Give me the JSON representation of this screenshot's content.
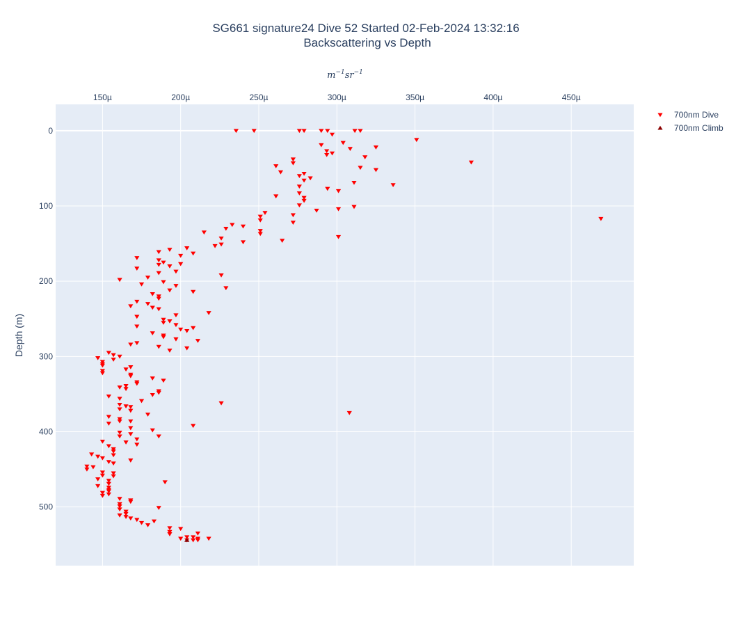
{
  "chart_data": {
    "type": "scatter",
    "title": [
      "SG661 signature24 Dive 52 Started 02-Feb-2024 13:32:16",
      "Backscattering vs Depth"
    ],
    "xlabel": {
      "base1": "m",
      "sup1": "−1",
      "base2": "sr",
      "sup2": "−1"
    },
    "ylabel": "Depth (m)",
    "xlim": [
      0.00012,
      0.00049
    ],
    "ylim": [
      578,
      -35
    ],
    "x_axis_side": "top",
    "y_reversed": true,
    "grid": true,
    "x_ticks": [
      {
        "value": 0.00015,
        "label": "150µ"
      },
      {
        "value": 0.0002,
        "label": "200µ"
      },
      {
        "value": 0.00025,
        "label": "250µ"
      },
      {
        "value": 0.0003,
        "label": "300µ"
      },
      {
        "value": 0.00035,
        "label": "350µ"
      },
      {
        "value": 0.0004,
        "label": "400µ"
      },
      {
        "value": 0.00045,
        "label": "450µ"
      }
    ],
    "y_ticks": [
      {
        "value": 0,
        "label": "0"
      },
      {
        "value": 100,
        "label": "100"
      },
      {
        "value": 200,
        "label": "200"
      },
      {
        "value": 300,
        "label": "300"
      },
      {
        "value": 400,
        "label": "400"
      },
      {
        "value": 500,
        "label": "500"
      }
    ],
    "legend_placement": "top-right",
    "series": [
      {
        "name": "700nm Dive",
        "marker": "triangle-down",
        "color": "#ff0000",
        "points": [
          [
            0.0002355,
            0
          ],
          [
            0.000247,
            0
          ],
          [
            0.000276,
            0
          ],
          [
            0.000279,
            0
          ],
          [
            0.00029,
            0
          ],
          [
            0.000294,
            0
          ],
          [
            0.0003115,
            0
          ],
          [
            0.000315,
            0
          ],
          [
            0.000297,
            5
          ],
          [
            0.000351,
            12
          ],
          [
            0.000304,
            16
          ],
          [
            0.00029,
            19
          ],
          [
            0.000325,
            22
          ],
          [
            0.0003085,
            24
          ],
          [
            0.0002935,
            27
          ],
          [
            0.000297,
            30
          ],
          [
            0.0002935,
            32
          ],
          [
            0.000318,
            35
          ],
          [
            0.000386,
            42
          ],
          [
            0.000272,
            38
          ],
          [
            0.000272,
            43
          ],
          [
            0.000261,
            47
          ],
          [
            0.000315,
            49
          ],
          [
            0.000325,
            52
          ],
          [
            0.000264,
            55
          ],
          [
            0.000279,
            57
          ],
          [
            0.000276,
            60
          ],
          [
            0.000283,
            63
          ],
          [
            0.000279,
            66
          ],
          [
            0.000311,
            69
          ],
          [
            0.000336,
            72
          ],
          [
            0.000276,
            74
          ],
          [
            0.000294,
            77
          ],
          [
            0.000301,
            80
          ],
          [
            0.000276,
            83
          ],
          [
            0.000261,
            87
          ],
          [
            0.000279,
            89
          ],
          [
            0.000279,
            93
          ],
          [
            0.000276,
            99
          ],
          [
            0.000311,
            101
          ],
          [
            0.000301,
            104
          ],
          [
            0.000287,
            106
          ],
          [
            0.000254,
            109
          ],
          [
            0.000272,
            112
          ],
          [
            0.000251,
            114
          ],
          [
            0.000469,
            117
          ],
          [
            0.000251,
            119
          ],
          [
            0.000272,
            122
          ],
          [
            0.000233,
            125
          ],
          [
            0.00024,
            127
          ],
          [
            0.000229,
            130
          ],
          [
            0.000251,
            133
          ],
          [
            0.000215,
            135
          ],
          [
            0.000251,
            137
          ],
          [
            0.000301,
            141
          ],
          [
            0.000226,
            143
          ],
          [
            0.000265,
            146
          ],
          [
            0.00024,
            148
          ],
          [
            0.000226,
            151
          ],
          [
            0.000222,
            153
          ],
          [
            0.000204,
            156
          ],
          [
            0.000193,
            158
          ],
          [
            0.000186,
            161
          ],
          [
            0.000208,
            163
          ],
          [
            0.0002,
            166
          ],
          [
            0.000172,
            169
          ],
          [
            0.000186,
            172
          ],
          [
            0.000189,
            175
          ],
          [
            0.000186,
            178
          ],
          [
            0.0002,
            177
          ],
          [
            0.000193,
            180
          ],
          [
            0.000172,
            183
          ],
          [
            0.000197,
            187
          ],
          [
            0.000186,
            189
          ],
          [
            0.000226,
            192
          ],
          [
            0.000179,
            195
          ],
          [
            0.000161,
            198
          ],
          [
            0.000189,
            201
          ],
          [
            0.000175,
            204
          ],
          [
            0.000197,
            206
          ],
          [
            0.000229,
            209
          ],
          [
            0.000193,
            212
          ],
          [
            0.000208,
            214
          ],
          [
            0.000182,
            217
          ],
          [
            0.000186,
            220
          ],
          [
            0.000186,
            223
          ],
          [
            0.000172,
            227
          ],
          [
            0.000179,
            230
          ],
          [
            0.000168,
            233
          ],
          [
            0.000182,
            235
          ],
          [
            0.000186,
            237
          ],
          [
            0.000218,
            242
          ],
          [
            0.000197,
            245
          ],
          [
            0.000172,
            247
          ],
          [
            0.000189,
            251
          ],
          [
            0.000193,
            253
          ],
          [
            0.000189,
            255
          ],
          [
            0.000197,
            258
          ],
          [
            0.000172,
            260
          ],
          [
            0.000208,
            262
          ],
          [
            0.0002,
            264
          ],
          [
            0.000204,
            266
          ],
          [
            0.000182,
            269
          ],
          [
            0.000189,
            272
          ],
          [
            0.000189,
            274
          ],
          [
            0.000197,
            277
          ],
          [
            0.000211,
            279
          ],
          [
            0.000172,
            282
          ],
          [
            0.000168,
            284
          ],
          [
            0.000186,
            287
          ],
          [
            0.000204,
            289
          ],
          [
            0.000193,
            292
          ],
          [
            0.000154,
            295
          ],
          [
            0.000157,
            298
          ],
          [
            0.000161,
            300
          ],
          [
            0.000147,
            302
          ],
          [
            0.000157,
            304
          ],
          [
            0.00015,
            307
          ],
          [
            0.00015,
            310
          ],
          [
            0.00015,
            312
          ],
          [
            0.000168,
            314
          ],
          [
            0.000165,
            317
          ],
          [
            0.00015,
            319
          ],
          [
            0.00015,
            322
          ],
          [
            0.000168,
            324
          ],
          [
            0.000168,
            326
          ],
          [
            0.000182,
            329
          ],
          [
            0.000189,
            332
          ],
          [
            0.000172,
            334
          ],
          [
            0.000172,
            336
          ],
          [
            0.000165,
            339
          ],
          [
            0.000161,
            341
          ],
          [
            0.000165,
            343
          ],
          [
            0.000186,
            346
          ],
          [
            0.000186,
            348
          ],
          [
            0.000182,
            351
          ],
          [
            0.000154,
            353
          ],
          [
            0.000161,
            356
          ],
          [
            0.000175,
            359
          ],
          [
            0.000226,
            362
          ],
          [
            0.000161,
            364
          ],
          [
            0.000168,
            367
          ],
          [
            0.000165,
            366
          ],
          [
            0.000161,
            370
          ],
          [
            0.000168,
            372
          ],
          [
            0.000308,
            375
          ],
          [
            0.000179,
            377
          ],
          [
            0.000154,
            380
          ],
          [
            0.000161,
            383
          ],
          [
            0.000161,
            386
          ],
          [
            0.000168,
            386
          ],
          [
            0.000154,
            389
          ],
          [
            0.000208,
            392
          ],
          [
            0.000168,
            395
          ],
          [
            0.000182,
            398
          ],
          [
            0.000161,
            401
          ],
          [
            0.000168,
            403
          ],
          [
            0.000161,
            406
          ],
          [
            0.000186,
            406
          ],
          [
            0.000172,
            410
          ],
          [
            0.00015,
            413
          ],
          [
            0.000165,
            414
          ],
          [
            0.000172,
            417
          ],
          [
            0.000154,
            419
          ],
          [
            0.000157,
            423
          ],
          [
            0.000157,
            426
          ],
          [
            0.000143,
            430
          ],
          [
            0.000157,
            431
          ],
          [
            0.000147,
            433
          ],
          [
            0.00015,
            435
          ],
          [
            0.000168,
            438
          ],
          [
            0.000154,
            440
          ],
          [
            0.000157,
            442
          ],
          [
            0.00014,
            446
          ],
          [
            0.000144,
            447
          ],
          [
            0.00014,
            450
          ],
          [
            0.00015,
            454
          ],
          [
            0.000157,
            455
          ],
          [
            0.00015,
            458
          ],
          [
            0.000157,
            459
          ],
          [
            0.000147,
            463
          ],
          [
            0.000154,
            465
          ],
          [
            0.00019,
            467
          ],
          [
            0.000154,
            469
          ],
          [
            0.000147,
            472
          ],
          [
            0.000154,
            474
          ],
          [
            0.000154,
            477
          ],
          [
            0.000154,
            479
          ],
          [
            0.00015,
            481
          ],
          [
            0.000154,
            483
          ],
          [
            0.00015,
            485
          ],
          [
            0.000161,
            489
          ],
          [
            0.000168,
            491
          ],
          [
            0.000168,
            493
          ],
          [
            0.000161,
            496
          ],
          [
            0.000161,
            499
          ],
          [
            0.000186,
            501
          ],
          [
            0.000161,
            503
          ],
          [
            0.000165,
            506
          ],
          [
            0.000165,
            509
          ],
          [
            0.000161,
            511
          ],
          [
            0.000165,
            513
          ],
          [
            0.000168,
            515
          ],
          [
            0.000172,
            517
          ],
          [
            0.000183,
            519
          ],
          [
            0.000175,
            521
          ],
          [
            0.000179,
            524
          ],
          [
            0.0002,
            529
          ],
          [
            0.000193,
            528
          ],
          [
            0.000193,
            533
          ],
          [
            0.000193,
            536
          ],
          [
            0.000211,
            535
          ],
          [
            0.0002,
            542
          ],
          [
            0.000204,
            540
          ],
          [
            0.000208,
            540
          ],
          [
            0.000211,
            542
          ],
          [
            0.000218,
            542
          ],
          [
            0.000204,
            544
          ],
          [
            0.000211,
            544
          ],
          [
            0.000208,
            544
          ]
        ]
      },
      {
        "name": "700nm Climb",
        "marker": "triangle-up",
        "color": "#8b0000",
        "points": [
          [
            0.000204,
            544
          ]
        ]
      }
    ]
  }
}
